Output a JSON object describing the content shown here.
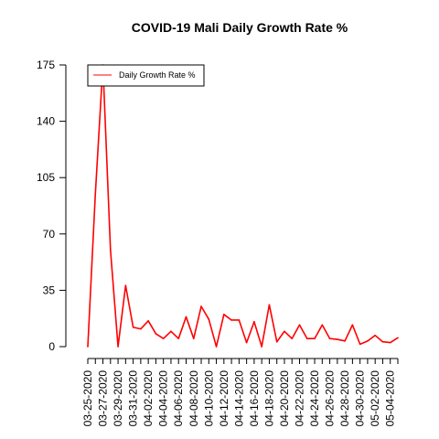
{
  "chart_data": {
    "type": "line",
    "title": "COVID-19 Mali Daily Growth Rate %",
    "xlabel": "",
    "ylabel": "",
    "ylim": [
      0,
      175
    ],
    "yticks": [
      0,
      35,
      70,
      105,
      140,
      175
    ],
    "x_tick_labels": [
      "03-25-2020",
      "03-27-2020",
      "03-29-2020",
      "03-31-2020",
      "04-02-2020",
      "04-04-2020",
      "04-06-2020",
      "04-08-2020",
      "04-10-2020",
      "04-12-2020",
      "04-14-2020",
      "04-16-2020",
      "04-18-2020",
      "04-20-2020",
      "04-22-2020",
      "04-24-2020",
      "04-26-2020",
      "04-28-2020",
      "04-30-2020",
      "05-02-2020",
      "05-04-2020"
    ],
    "grid": false,
    "legend_position": "top-left",
    "series": [
      {
        "name": "Daily Growth Rate %",
        "color": "#ff0000",
        "x": [
          "03-25-2020",
          "03-26-2020",
          "03-27-2020",
          "03-28-2020",
          "03-29-2020",
          "03-30-2020",
          "03-31-2020",
          "04-01-2020",
          "04-02-2020",
          "04-03-2020",
          "04-04-2020",
          "04-05-2020",
          "04-06-2020",
          "04-07-2020",
          "04-08-2020",
          "04-09-2020",
          "04-10-2020",
          "04-11-2020",
          "04-12-2020",
          "04-13-2020",
          "04-14-2020",
          "04-15-2020",
          "04-16-2020",
          "04-17-2020",
          "04-18-2020",
          "04-19-2020",
          "04-20-2020",
          "04-21-2020",
          "04-22-2020",
          "04-23-2020",
          "04-24-2020",
          "04-25-2020",
          "04-26-2020",
          "04-27-2020",
          "04-28-2020",
          "04-29-2020",
          "04-30-2020",
          "05-01-2020",
          "05-02-2020",
          "05-03-2020",
          "05-04-2020",
          "05-05-2020"
        ],
        "values": [
          0,
          95,
          175,
          60,
          0,
          38,
          12,
          11,
          16,
          8,
          5,
          9.5,
          5,
          18.5,
          5,
          25,
          17,
          0,
          20,
          16.5,
          16.5,
          2.5,
          15.5,
          0,
          26,
          3,
          9.5,
          5,
          13.5,
          5,
          5,
          13.5,
          5,
          4.5,
          3.5,
          13.5,
          1.5,
          3.5,
          7,
          3,
          2.5,
          5.5
        ]
      }
    ]
  }
}
